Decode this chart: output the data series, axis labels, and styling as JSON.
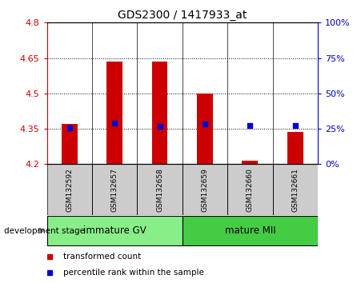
{
  "title": "GDS2300 / 1417933_at",
  "samples": [
    "GSM132592",
    "GSM132657",
    "GSM132658",
    "GSM132659",
    "GSM132660",
    "GSM132661"
  ],
  "bar_tops": [
    4.37,
    4.635,
    4.635,
    4.5,
    4.215,
    4.335
  ],
  "bar_base": 4.2,
  "blue_dots": [
    4.352,
    4.375,
    4.36,
    4.372,
    4.365,
    4.365
  ],
  "ylim": [
    4.2,
    4.8
  ],
  "yticks_left": [
    4.2,
    4.35,
    4.5,
    4.65,
    4.8
  ],
  "yticks_right": [
    0,
    25,
    50,
    75,
    100
  ],
  "yticks_right_vals": [
    4.2,
    4.35,
    4.5,
    4.65,
    4.8
  ],
  "hlines": [
    4.35,
    4.5,
    4.65
  ],
  "bar_color": "#cc0000",
  "dot_color": "#0000cc",
  "bar_width": 0.35,
  "groups": [
    {
      "label": "immature GV",
      "indices": [
        0,
        1,
        2
      ],
      "color": "#88ee88"
    },
    {
      "label": "mature MII",
      "indices": [
        3,
        4,
        5
      ],
      "color": "#44cc44"
    }
  ],
  "group_label": "development stage",
  "legend_items": [
    {
      "label": "transformed count",
      "color": "#cc0000"
    },
    {
      "label": "percentile rank within the sample",
      "color": "#0000cc"
    }
  ],
  "left_ytick_color": "#cc0000",
  "right_ytick_color": "#0000cc",
  "sample_box_color": "#cccccc",
  "group_row_bg": "#dddddd"
}
